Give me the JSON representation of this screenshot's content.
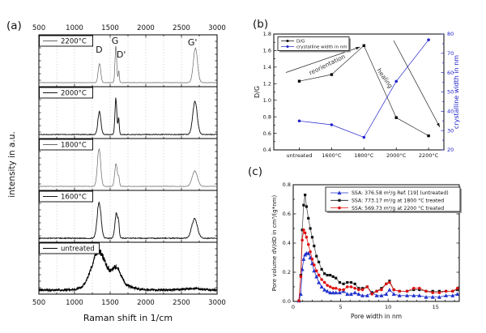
{
  "panel_labels": {
    "a": "(a)",
    "b": "(b)",
    "c": "(c)"
  },
  "chart_data": [
    {
      "id": "a",
      "type": "line",
      "xlabel": "Raman shift in 1/cm",
      "ylabel": "intensity in a.u.",
      "xlim": [
        500,
        3000
      ],
      "xticks": [
        500,
        1000,
        1500,
        2000,
        2500,
        3000
      ],
      "grid": "vertical-dotted-every-250",
      "peak_annotations": [
        {
          "text": "D",
          "x": 1345,
          "dy": 22
        },
        {
          "text": "G",
          "x": 1568,
          "dy": 11
        },
        {
          "text": "D'",
          "x": 1655,
          "dy": 28
        },
        {
          "text": "G'",
          "x": 2655,
          "dy": 13
        }
      ],
      "spectra": [
        {
          "label": "2200°C",
          "color": "#666666",
          "line_width": 0.7,
          "noise": 0.006,
          "peaks": [
            [
              1350,
              18,
              0.5
            ],
            [
              1580,
              12,
              0.98
            ],
            [
              1621,
              8,
              0.32
            ],
            [
              2696,
              29,
              0.91
            ]
          ]
        },
        {
          "label": "2000°C",
          "color": "#151515",
          "line_width": 0.95,
          "noise": 0.016,
          "peaks": [
            [
              1349,
              21,
              0.6
            ],
            [
              1580,
              13,
              0.95
            ],
            [
              1619,
              9,
              0.44
            ],
            [
              2690,
              31,
              0.86
            ]
          ]
        },
        {
          "label": "1800°C",
          "color": "#666666",
          "line_width": 0.7,
          "noise": 0.01,
          "peaks": [
            [
              1344,
              23,
              0.98
            ],
            [
              1582,
              18,
              0.6
            ],
            [
              1621,
              10,
              0.22
            ],
            [
              2687,
              37,
              0.4
            ]
          ]
        },
        {
          "label": "1600°C",
          "color": "#151515",
          "line_width": 0.95,
          "noise": 0.02,
          "peaks": [
            [
              1345,
              27,
              0.95
            ],
            [
              1588,
              21,
              0.66
            ],
            [
              1619,
              10,
              0.24
            ],
            [
              2683,
              40,
              0.5
            ]
          ]
        },
        {
          "label": "untreated",
          "color": "#000000",
          "line_width": 1.05,
          "noise": 0.045,
          "peaks": [
            [
              1335,
              95,
              0.8
            ],
            [
              1595,
              55,
              0.38
            ],
            [
              1480,
              210,
              0.25
            ],
            [
              2660,
              140,
              0.035
            ]
          ]
        }
      ]
    },
    {
      "id": "b",
      "type": "scatter-line",
      "categories": [
        "untreated",
        "1600°C",
        "1800°C",
        "2000°C",
        "2200°C"
      ],
      "ylabel_left": "D/G",
      "ylabel_right": "crystalline width in nm",
      "ylim_left": [
        0.4,
        1.8
      ],
      "ytick_step_left": 0.2,
      "ylim_right": [
        20,
        80
      ],
      "ytick_step_right": 10,
      "legend_position": "top-left",
      "series": [
        {
          "name": "D/G",
          "axis": "left",
          "color": "#000000",
          "marker": "square",
          "values": [
            1.23,
            1.31,
            1.66,
            0.79,
            0.57
          ]
        },
        {
          "name": "crystalline width in nm",
          "axis": "right",
          "color": "#2222cc",
          "marker": "circle",
          "values": [
            35,
            33,
            26.5,
            55.5,
            77
          ]
        }
      ],
      "annotations": [
        {
          "text": "reorientation",
          "rotation": -26
        },
        {
          "text": "healing",
          "rotation": 55
        }
      ]
    },
    {
      "id": "c",
      "type": "scatter-line",
      "xlabel": "Pore width in nm",
      "ylabel": "Pore volume dV/dD in cm³/(g*nm)",
      "xlim": [
        0,
        17.5
      ],
      "xticks": [
        0,
        5,
        10,
        15
      ],
      "ylim": [
        0,
        0.8
      ],
      "yticks": [
        0.0,
        0.2,
        0.4,
        0.6,
        0.8
      ],
      "legend_position": "top-right",
      "x": [
        0.6,
        0.8,
        0.95,
        1.1,
        1.25,
        1.4,
        1.6,
        1.8,
        2.0,
        2.2,
        2.45,
        2.7,
        3.0,
        3.3,
        3.6,
        3.9,
        4.2,
        4.5,
        4.9,
        5.3,
        5.7,
        6.1,
        6.5,
        6.9,
        7.3,
        7.8,
        8.3,
        8.8,
        9.3,
        9.8,
        10.15,
        10.6,
        11.2,
        12.0,
        12.7,
        13.3,
        14.0,
        14.7,
        15.4,
        16.1,
        16.8,
        17.3
      ],
      "series": [
        {
          "name": "SSA: 376.58 m²/g Ref. [19] (untreated)",
          "color": "#2233cc",
          "marker": "triangle",
          "y": [
            0.005,
            0.05,
            0.22,
            0.29,
            0.32,
            0.33,
            0.33,
            0.3,
            0.26,
            0.21,
            0.17,
            0.13,
            0.1,
            0.08,
            0.07,
            0.06,
            0.06,
            0.06,
            0.06,
            0.07,
            0.05,
            0.05,
            0.06,
            0.05,
            0.04,
            0.04,
            0.06,
            0.04,
            0.04,
            0.05,
            0.08,
            0.05,
            0.04,
            0.04,
            0.04,
            0.04,
            0.03,
            0.03,
            0.03,
            0.04,
            0.04,
            0.05
          ]
        },
        {
          "name": "SSA: 773.17 m²/g at 1800 °C treated",
          "color": "#111111",
          "marker": "square",
          "y": [
            0.005,
            0.18,
            0.49,
            0.66,
            0.73,
            0.65,
            0.57,
            0.5,
            0.44,
            0.38,
            0.31,
            0.27,
            0.22,
            0.19,
            0.18,
            0.18,
            0.17,
            0.16,
            0.13,
            0.12,
            0.13,
            0.13,
            0.12,
            0.09,
            0.09,
            0.1,
            0.06,
            0.07,
            0.09,
            0.12,
            0.14,
            0.08,
            0.07,
            0.07,
            0.08,
            0.08,
            0.07,
            0.07,
            0.07,
            0.07,
            0.07,
            0.08
          ]
        },
        {
          "name": "SSA: 569.73 m²/g at 2200 °C treated",
          "color": "#dd1111",
          "marker": "circle",
          "y": [
            0.005,
            0.17,
            0.42,
            0.49,
            0.47,
            0.44,
            0.39,
            0.34,
            0.29,
            0.25,
            0.21,
            0.18,
            0.15,
            0.13,
            0.11,
            0.1,
            0.09,
            0.09,
            0.08,
            0.08,
            0.1,
            0.1,
            0.09,
            0.08,
            0.08,
            0.1,
            0.05,
            0.07,
            0.08,
            0.12,
            0.13,
            0.08,
            0.07,
            0.07,
            0.09,
            0.09,
            0.07,
            0.06,
            0.06,
            0.07,
            0.07,
            0.09
          ]
        }
      ]
    }
  ]
}
